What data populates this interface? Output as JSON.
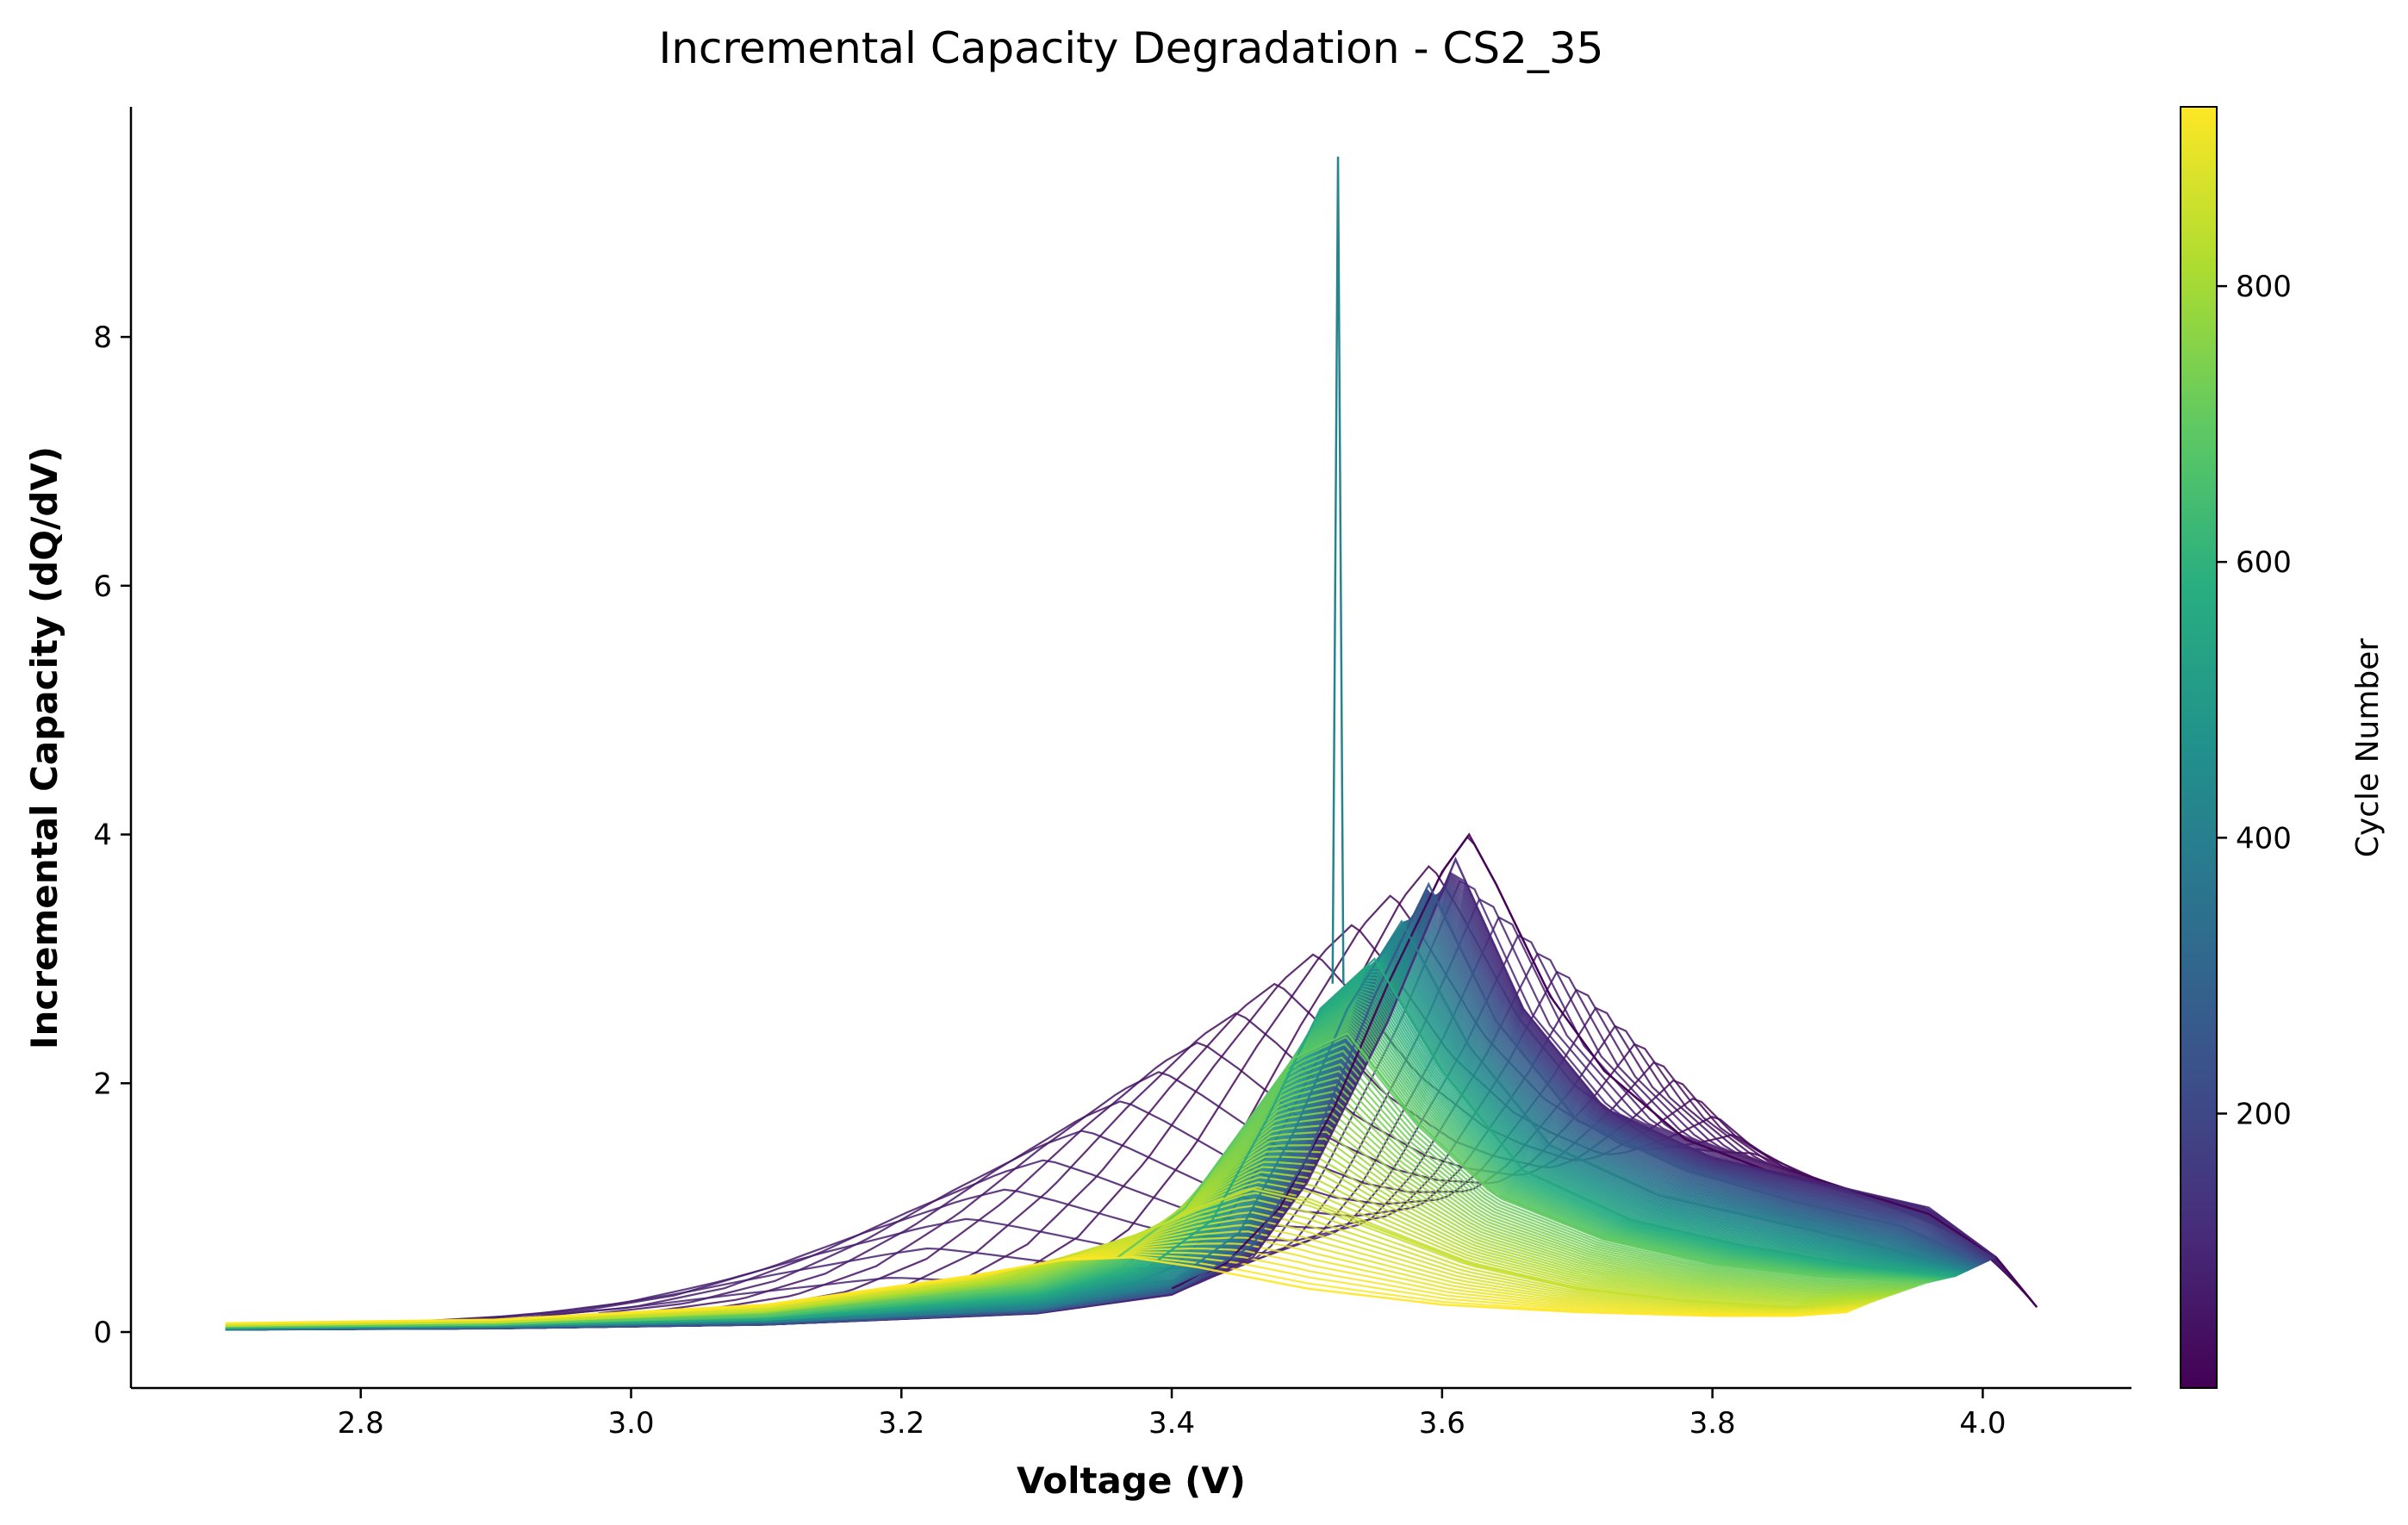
{
  "chart_data": {
    "type": "line",
    "title": "Incremental Capacity Degradation - CS2_35",
    "xlabel": "Voltage (V)",
    "ylabel": "Incremental Capacity (dQ/dV)",
    "xlim": [
      2.63,
      4.11
    ],
    "ylim": [
      -0.45,
      9.85
    ],
    "xticks": [
      "2.8",
      "3.0",
      "3.2",
      "3.4",
      "3.6",
      "3.8",
      "4.0"
    ],
    "yticks": [
      "0",
      "2",
      "4",
      "6",
      "8"
    ],
    "grid": false,
    "colormap": "viridis",
    "colorbar": {
      "label": "Cycle Number",
      "range": [
        1,
        930
      ],
      "ticks": [
        "200",
        "400",
        "600",
        "800"
      ]
    },
    "series_sampled": [
      {
        "cycle": 1,
        "voltage": [
          3.4,
          3.44,
          3.48,
          3.52,
          3.56,
          3.6,
          3.62,
          3.64,
          3.68,
          3.72,
          3.78,
          3.84,
          3.9,
          3.96,
          4.01,
          4.04
        ],
        "dqdv": [
          0.35,
          0.55,
          1.0,
          1.8,
          2.8,
          3.7,
          4.0,
          3.6,
          2.7,
          2.1,
          1.55,
          1.3,
          1.15,
          0.95,
          0.6,
          0.2
        ]
      },
      {
        "cycle": 100,
        "voltage": [
          2.7,
          2.9,
          3.1,
          3.3,
          3.4,
          3.46,
          3.5,
          3.56,
          3.61,
          3.66,
          3.72,
          3.8,
          3.88,
          3.96,
          4.01
        ],
        "dqdv": [
          0.02,
          0.03,
          0.06,
          0.15,
          0.3,
          0.6,
          1.2,
          2.5,
          3.8,
          2.6,
          1.8,
          1.4,
          1.2,
          1.0,
          0.6
        ]
      },
      {
        "cycle": 250,
        "voltage": [
          2.7,
          2.9,
          3.1,
          3.3,
          3.4,
          3.46,
          3.5,
          3.55,
          3.59,
          3.64,
          3.7,
          3.78,
          3.86,
          3.94,
          4.0
        ],
        "dqdv": [
          0.02,
          0.03,
          0.06,
          0.16,
          0.32,
          0.7,
          1.4,
          2.7,
          3.6,
          2.5,
          1.7,
          1.3,
          1.05,
          0.85,
          0.55
        ]
      },
      {
        "cycle": 400,
        "voltage": [
          2.7,
          2.9,
          3.1,
          3.3,
          3.4,
          3.45,
          3.49,
          3.53,
          3.57,
          3.62,
          3.68,
          3.76,
          3.84,
          3.92,
          3.99
        ],
        "dqdv": [
          0.02,
          0.04,
          0.08,
          0.2,
          0.4,
          0.8,
          1.6,
          2.6,
          3.3,
          2.3,
          1.5,
          1.1,
          0.9,
          0.7,
          0.5
        ]
      },
      {
        "cycle": 550,
        "voltage": [
          2.7,
          2.9,
          3.1,
          3.3,
          3.38,
          3.43,
          3.47,
          3.51,
          3.55,
          3.6,
          3.66,
          3.74,
          3.82,
          3.9,
          3.98
        ],
        "dqdv": [
          0.03,
          0.05,
          0.1,
          0.28,
          0.5,
          0.9,
          1.7,
          2.6,
          3.0,
          2.1,
          1.3,
          0.9,
          0.7,
          0.55,
          0.45
        ]
      },
      {
        "cycle": 700,
        "voltage": [
          2.7,
          2.9,
          3.1,
          3.3,
          3.36,
          3.41,
          3.45,
          3.49,
          3.53,
          3.58,
          3.64,
          3.72,
          3.8,
          3.88,
          3.96
        ],
        "dqdv": [
          0.04,
          0.06,
          0.14,
          0.38,
          0.6,
          1.0,
          1.6,
          2.2,
          2.4,
          1.7,
          1.1,
          0.75,
          0.55,
          0.45,
          0.4
        ]
      },
      {
        "cycle": 850,
        "voltage": [
          2.7,
          2.9,
          3.1,
          3.26,
          3.32,
          3.38,
          3.42,
          3.46,
          3.5,
          3.56,
          3.62,
          3.7,
          3.78,
          3.86,
          3.92
        ],
        "dqdv": [
          0.05,
          0.08,
          0.18,
          0.42,
          0.6,
          0.8,
          1.0,
          1.15,
          1.05,
          0.8,
          0.55,
          0.35,
          0.25,
          0.2,
          0.25
        ]
      },
      {
        "cycle": 930,
        "voltage": [
          2.7,
          2.9,
          3.1,
          3.25,
          3.32,
          3.37,
          3.42,
          3.5,
          3.6,
          3.7,
          3.8,
          3.86,
          3.9
        ],
        "dqdv": [
          0.07,
          0.1,
          0.22,
          0.45,
          0.58,
          0.6,
          0.52,
          0.35,
          0.22,
          0.16,
          0.13,
          0.13,
          0.16
        ]
      }
    ],
    "annotations": [
      {
        "cycle": 420,
        "type": "spike",
        "voltage": 3.523,
        "dqdv": 9.45
      }
    ]
  }
}
